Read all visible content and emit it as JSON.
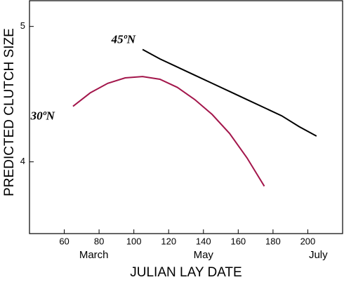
{
  "chart_data": {
    "type": "line",
    "x_label": "JULIAN LAY DATE",
    "y_label": "PREDICTED CLUTCH SIZE",
    "xlim": [
      40,
      220
    ],
    "xticks": [
      60,
      80,
      100,
      120,
      140,
      160,
      180,
      200
    ],
    "ylim": [
      3.47,
      5.19
    ],
    "yticks": [
      4,
      5
    ],
    "month_labels": [
      {
        "label": "March",
        "x": 77
      },
      {
        "label": "May",
        "x": 140
      },
      {
        "label": "July",
        "x": 206
      }
    ],
    "series": [
      {
        "name": "30ºN",
        "color": "#a3164b",
        "x": [
          65,
          75,
          85,
          95,
          105,
          115,
          125,
          135,
          145,
          155,
          165,
          175
        ],
        "values": [
          4.41,
          4.51,
          4.58,
          4.62,
          4.63,
          4.61,
          4.55,
          4.46,
          4.35,
          4.21,
          4.03,
          3.82
        ]
      },
      {
        "name": "45ºN",
        "color": "#000000",
        "x": [
          105,
          115,
          125,
          135,
          145,
          155,
          165,
          175,
          185,
          195,
          205
        ],
        "values": [
          4.83,
          4.76,
          4.7,
          4.64,
          4.58,
          4.52,
          4.46,
          4.4,
          4.34,
          4.26,
          4.19
        ]
      }
    ]
  }
}
